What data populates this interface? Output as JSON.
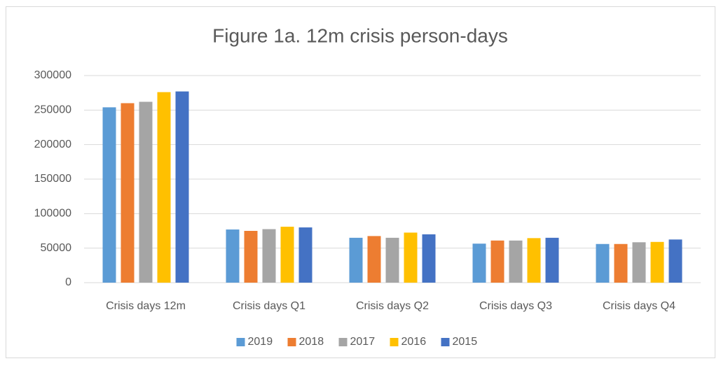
{
  "chart_data": {
    "type": "bar",
    "title": "Figure 1a. 12m crisis person-days",
    "categories": [
      "Crisis days 12m",
      "Crisis days Q1",
      "Crisis days Q2",
      "Crisis days Q3",
      "Crisis days Q4"
    ],
    "series": [
      {
        "name": "2019",
        "color": "#5b9bd5",
        "values": [
          254000,
          77000,
          65000,
          56500,
          56000
        ]
      },
      {
        "name": "2018",
        "color": "#ed7d31",
        "values": [
          260000,
          75000,
          67500,
          61000,
          56000
        ]
      },
      {
        "name": "2017",
        "color": "#a5a5a5",
        "values": [
          262000,
          77500,
          65000,
          61000,
          58500
        ]
      },
      {
        "name": "2016",
        "color": "#ffc000",
        "values": [
          276000,
          81000,
          72500,
          64500,
          59000
        ]
      },
      {
        "name": "2015",
        "color": "#4472c4",
        "values": [
          277000,
          80000,
          70000,
          65000,
          62500
        ]
      }
    ],
    "ylim": [
      0,
      300000
    ],
    "yticks": [
      0,
      50000,
      100000,
      150000,
      200000,
      250000,
      300000
    ],
    "grid": true,
    "legend": "bottom"
  }
}
